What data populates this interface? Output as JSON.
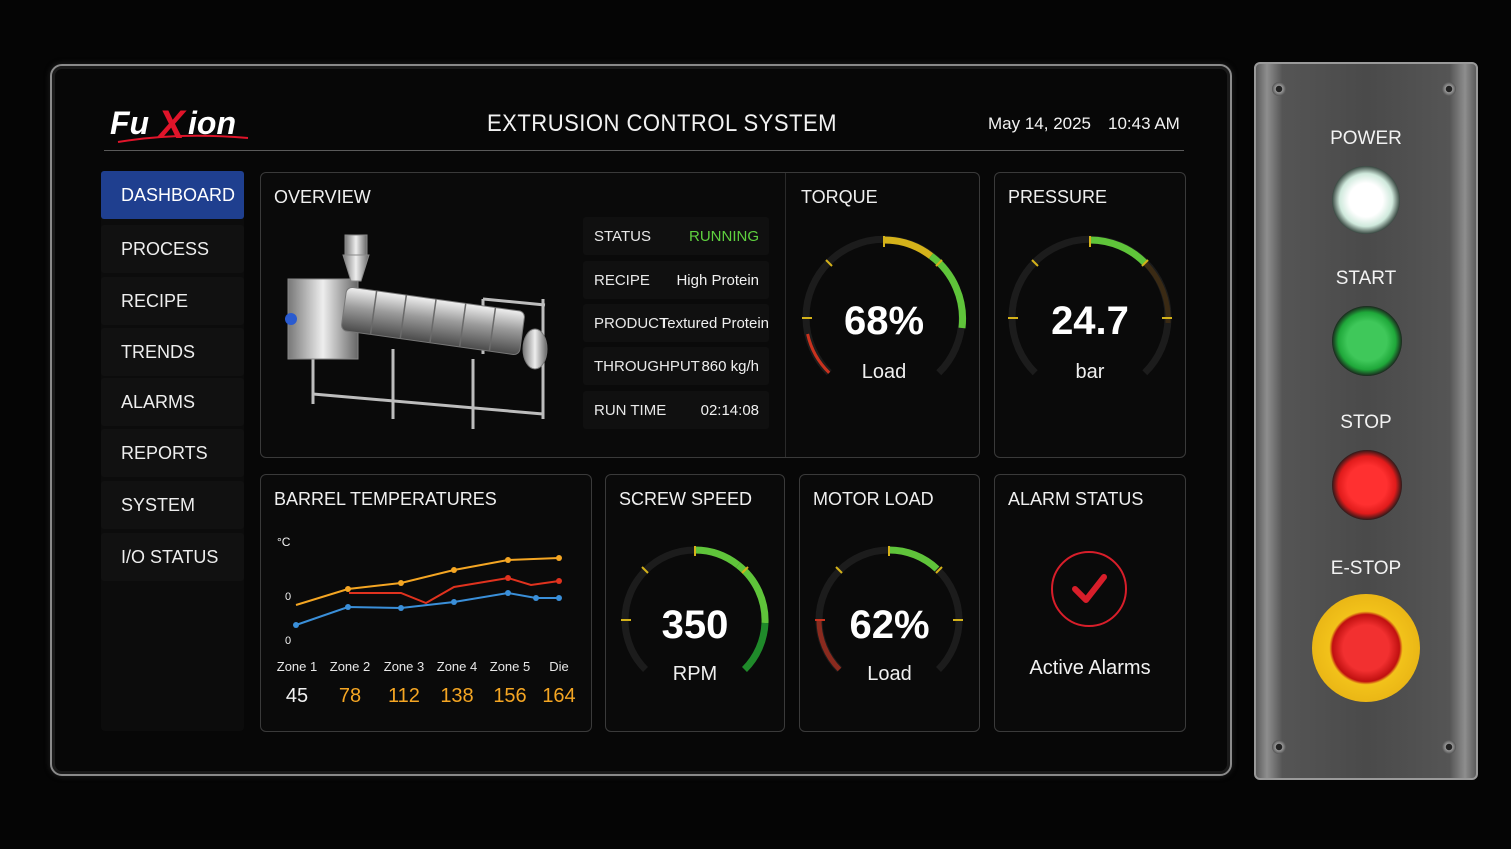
{
  "header": {
    "logo_text": "FuXion",
    "title": "EXTRUSION CONTROL SYSTEM",
    "date": "May 14, 2025",
    "time": "10:43 AM"
  },
  "nav": {
    "items": [
      {
        "label": "DASHBOARD",
        "active": true
      },
      {
        "label": "PROCESS",
        "active": false
      },
      {
        "label": "RECIPE",
        "active": false
      },
      {
        "label": "TRENDS",
        "active": false
      },
      {
        "label": "ALARMS",
        "active": false
      },
      {
        "label": "REPORTS",
        "active": false
      },
      {
        "label": "SYSTEM",
        "active": false
      },
      {
        "label": "I/O STATUS",
        "active": false
      }
    ]
  },
  "overview": {
    "title": "OVERVIEW",
    "rows": [
      {
        "label": "STATUS",
        "value": "RUNNING"
      },
      {
        "label": "RECIPE",
        "value": "High Protein"
      },
      {
        "label": "PRODUCT",
        "value": "Textured Protein"
      },
      {
        "label": "THROUGHPUT",
        "value": "860 kg/h"
      },
      {
        "label": "RUN TIME",
        "value": "02:14:08"
      }
    ]
  },
  "torque": {
    "title": "TORQUE",
    "value": "68%",
    "unit": "Load",
    "level": 0.68
  },
  "pressure": {
    "title": "PRESSURE",
    "value": "24.7",
    "unit": "bar"
  },
  "barrel": {
    "title": "BARREL TEMPERATURES",
    "unit_label": "°C",
    "y_ticks": [
      "0",
      "0"
    ],
    "zones": [
      {
        "label": "Zone 1",
        "value": "45"
      },
      {
        "label": "Zone 2",
        "value": "78"
      },
      {
        "label": "Zone 3",
        "value": "112"
      },
      {
        "label": "Zone 4",
        "value": "138"
      },
      {
        "label": "Zone 5",
        "value": "156"
      },
      {
        "label": "Die",
        "value": "164"
      }
    ]
  },
  "screw_speed": {
    "title": "SCREW SPEED",
    "value": "350",
    "unit": "RPM"
  },
  "motor_load": {
    "title": "MOTOR LOAD",
    "value": "62%",
    "unit": "Load",
    "level": 0.62
  },
  "alarm_status": {
    "title": "ALARM STATUS",
    "message": "Active Alarms"
  },
  "control_panel": {
    "power_label": "POWER",
    "start_label": "START",
    "stop_label": "STOP",
    "estop_label": "E-STOP"
  },
  "colors": {
    "accent_blue": "#1f3f8f",
    "running_green": "#5fd13f",
    "gauge_green": "#5fc43a",
    "gauge_yellow": "#d4b21a",
    "gauge_red": "#c8321e",
    "temp_orange": "#f5a623",
    "temp_blue": "#3a8fd9",
    "start_green": "#1fa83a",
    "stop_red": "#e01b1b",
    "estop_yellow": "#f2c21a"
  }
}
